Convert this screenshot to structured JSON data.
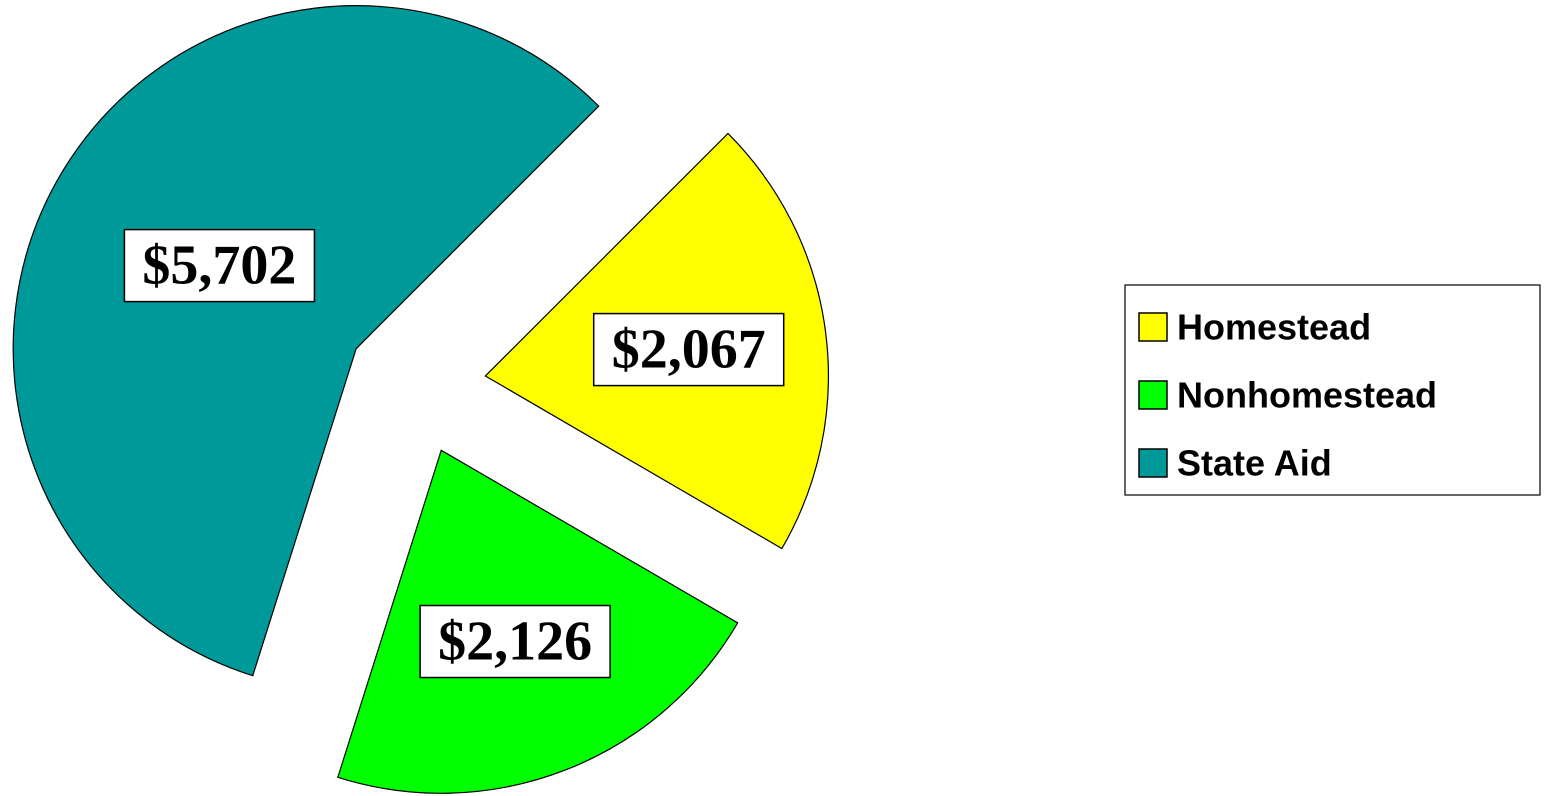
{
  "chart_data": {
    "type": "pie",
    "categories": [
      "Homestead",
      "Nonhomestead",
      "State Aid"
    ],
    "values": [
      2067,
      2126,
      5702
    ],
    "value_labels": [
      "$2,067",
      "$2,126",
      "$5,702"
    ],
    "colors": [
      "#ffff00",
      "#00ff00",
      "#009999"
    ],
    "exploded": true,
    "legend": "right"
  }
}
